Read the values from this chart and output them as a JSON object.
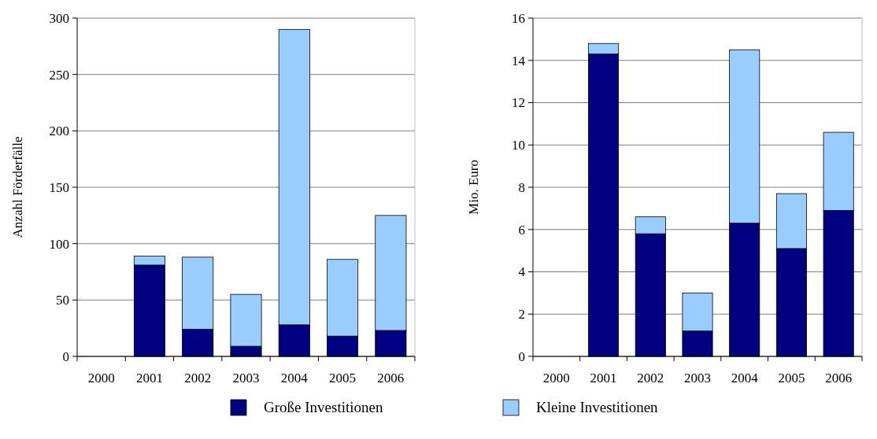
{
  "chart_data": [
    {
      "type": "bar",
      "stacked": true,
      "ylabel": "Anzahl Förderfälle",
      "categories": [
        "2000",
        "2001",
        "2002",
        "2003",
        "2004",
        "2005",
        "2006"
      ],
      "ylim": [
        0,
        300
      ],
      "yticks": [
        0,
        50,
        100,
        150,
        200,
        250,
        300
      ],
      "grid": "y",
      "legend": "bottom",
      "series": [
        {
          "name": "Große Investitionen",
          "color": "#000080",
          "values": [
            0,
            81,
            24,
            9,
            28,
            18,
            23
          ]
        },
        {
          "name": "Kleine Investitionen",
          "color": "#99ccff",
          "values": [
            0,
            8,
            64,
            46,
            262,
            68,
            102
          ]
        }
      ]
    },
    {
      "type": "bar",
      "stacked": true,
      "ylabel": "Mio. Euro",
      "categories": [
        "2000",
        "2001",
        "2002",
        "2003",
        "2004",
        "2005",
        "2006"
      ],
      "ylim": [
        0,
        16
      ],
      "yticks": [
        0,
        2,
        4,
        6,
        8,
        10,
        12,
        14,
        16
      ],
      "grid": "y",
      "series": [
        {
          "color": "#000080",
          "values": [
            0,
            14.3,
            5.8,
            1.2,
            6.3,
            5.1,
            6.9
          ]
        },
        {
          "color": "#99ccff",
          "values": [
            0,
            0.5,
            0.8,
            1.8,
            8.2,
            2.6,
            3.7
          ]
        }
      ]
    }
  ]
}
